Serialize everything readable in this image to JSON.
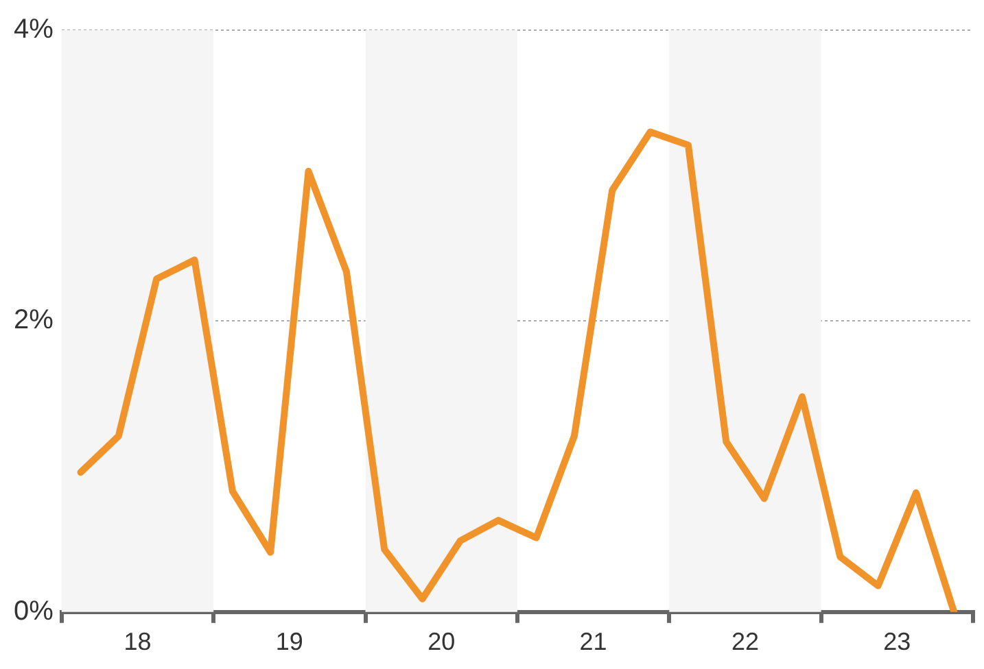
{
  "chart_data": {
    "type": "line",
    "x": [
      17.625,
      17.875,
      18.125,
      18.375,
      18.625,
      18.875,
      19.125,
      19.375,
      19.625,
      19.875,
      20.125,
      20.375,
      20.625,
      20.875,
      21.125,
      21.375,
      21.625,
      21.875,
      22.125,
      22.375,
      22.625,
      22.875,
      23.125,
      23.375
    ],
    "series": [
      {
        "color": "#f0932b",
        "values": [
          0.96,
          1.21,
          2.29,
          2.42,
          0.83,
          0.41,
          3.03,
          2.34,
          0.43,
          0.09,
          0.49,
          0.63,
          0.51,
          1.21,
          2.9,
          3.3,
          3.21,
          1.17,
          0.78,
          1.48,
          0.38,
          0.18,
          0.82,
          0.0
        ]
      }
    ],
    "xlim": [
      17.5,
      23.5
    ],
    "xticks": [
      {
        "value": 17.5,
        "label": null
      },
      18,
      {
        "value": 18.5,
        "label": null
      },
      19,
      {
        "value": 19.5,
        "label": null
      },
      20,
      {
        "value": 20.5,
        "label": null
      },
      21,
      {
        "value": 21.5,
        "label": null
      },
      22,
      {
        "value": 22.5,
        "label": null
      },
      23,
      {
        "value": 23.5,
        "label": null
      }
    ],
    "ylim": [
      0,
      4
    ],
    "yticks": [
      {
        "value": 0,
        "label": "0%"
      },
      {
        "value": 2,
        "label": "2%"
      },
      {
        "value": 4,
        "label": "4%"
      }
    ],
    "bands": [
      {
        "axis": "x",
        "from": 17.5,
        "to": 18.5,
        "color": "#f5f5f5"
      },
      {
        "axis": "x",
        "from": 19.5,
        "to": 20.5,
        "color": "#f5f5f5"
      },
      {
        "axis": "x",
        "from": 21.5,
        "to": 22.5,
        "color": "#f5f5f5"
      }
    ],
    "grid": "y",
    "legend": false,
    "marker": "none",
    "line_style": "solid"
  }
}
